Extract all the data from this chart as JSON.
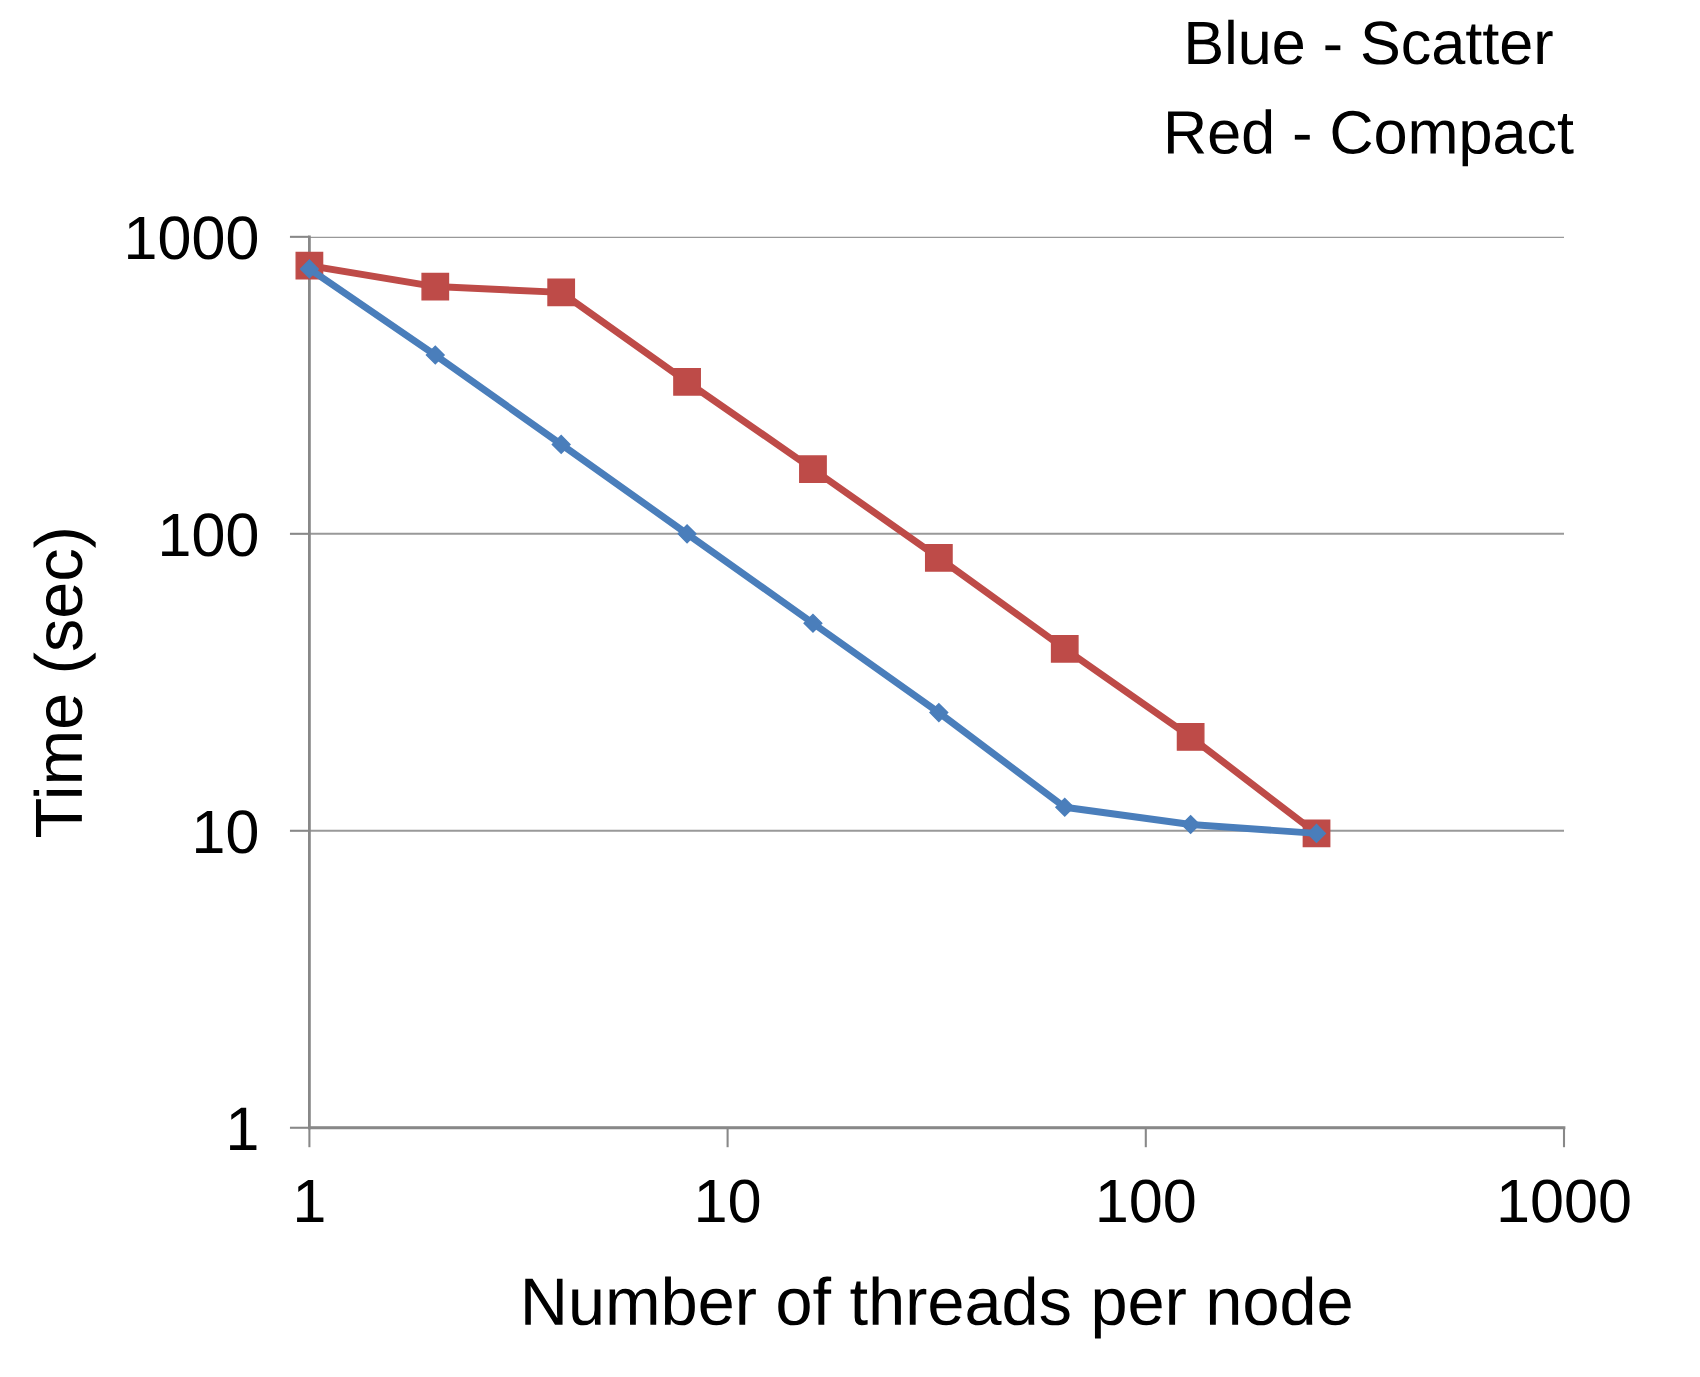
{
  "chart_data": {
    "type": "line",
    "xlabel": "Number of threads per node",
    "ylabel": "Time (sec)",
    "annotations": [
      "Blue - Scatter",
      "Red - Compact"
    ],
    "x": [
      1,
      2,
      4,
      8,
      16,
      32,
      64,
      128,
      256
    ],
    "series": [
      {
        "color": "#4a7ebb",
        "marker": "diamond",
        "values": [
          780,
          400,
          200,
          100,
          50,
          25,
          12,
          10.5,
          9.8
        ]
      },
      {
        "color": "#be4b48",
        "marker": "square",
        "values": [
          800,
          680,
          650,
          325,
          165,
          83,
          41,
          20.7,
          9.8
        ]
      }
    ],
    "log": "xy",
    "xlim": [
      1,
      1000
    ],
    "ylim": [
      1,
      1000
    ],
    "xticks": [
      1,
      10,
      100,
      1000
    ],
    "yticks": [
      1,
      10,
      100,
      1000
    ],
    "grid": "y",
    "legend": false,
    "line_style": "solid"
  }
}
